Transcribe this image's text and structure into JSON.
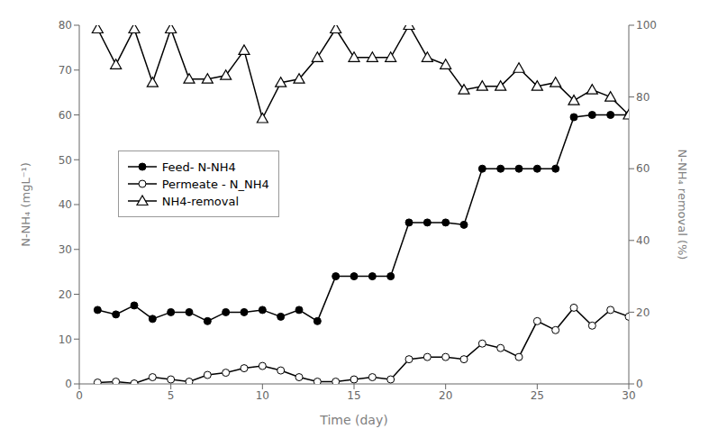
{
  "chart_data": {
    "type": "line",
    "xlabel": "Time (day)",
    "ylabel": "N-NH₄ (mgL⁻¹)",
    "y2label": "N-NH₄ removal (%)",
    "x": [
      1,
      2,
      3,
      4,
      5,
      6,
      7,
      8,
      9,
      10,
      11,
      12,
      13,
      14,
      15,
      16,
      17,
      18,
      19,
      20,
      21,
      22,
      23,
      24,
      25,
      26,
      27,
      28,
      29,
      30
    ],
    "series": [
      {
        "name": "Feed- N-NH4",
        "color": "black",
        "marker": "circle",
        "values": [
          16.5,
          15.5,
          17.5,
          14.5,
          16.0,
          16.0,
          14.0,
          16.0,
          16.0,
          16.5,
          15.0,
          16.5,
          14.0,
          24.0,
          24.0,
          24.0,
          24.0,
          36.0,
          36.0,
          36.0,
          35.5,
          48.0,
          48.0,
          48.0,
          48.0,
          48.0,
          59.5,
          60.0,
          60.0,
          60.0
        ]
      },
      {
        "name": "Permeate - N_NH4",
        "color": "black",
        "marker": "open circle",
        "values": [
          0.3,
          0.5,
          0.1,
          1.5,
          1.0,
          0.5,
          2.0,
          2.5,
          3.5,
          4.0,
          3.0,
          1.5,
          0.5,
          0.5,
          1.0,
          1.5,
          1.0,
          5.5,
          6.0,
          6.0,
          5.5,
          9.0,
          8.0,
          6.0,
          14.0,
          12.0,
          17.0,
          13.0,
          16.5,
          15.0
        ]
      },
      {
        "name": "NH4-removal",
        "color": "black",
        "marker": "open triangle",
        "axis": "y2",
        "values": [
          99,
          89,
          99,
          84,
          99,
          85,
          85,
          86,
          93,
          74,
          84,
          85,
          91,
          99,
          91,
          91,
          91,
          100,
          91,
          89,
          82,
          83,
          83,
          88,
          83,
          84,
          79,
          82,
          80,
          75
        ]
      }
    ],
    "xlim": [
      0,
      30
    ],
    "xticks": [
      0,
      5,
      10,
      15,
      20,
      25,
      30
    ],
    "ylim": [
      0,
      80
    ],
    "yticks": [
      0,
      10,
      20,
      30,
      40,
      50,
      60,
      70,
      80
    ],
    "y2lim": [
      0,
      100
    ],
    "y2ticks": [
      0,
      20,
      40,
      60,
      80,
      100
    ],
    "grid": false,
    "legend": "center left"
  }
}
